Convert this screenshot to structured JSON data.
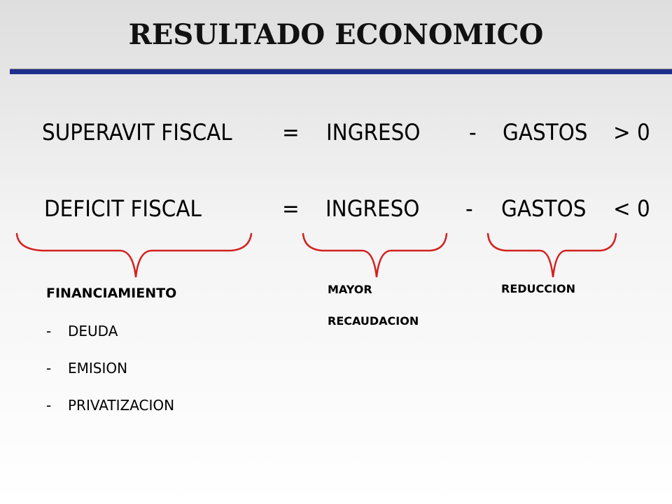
{
  "title": "RESULTADO ECONOMICO",
  "colors": {
    "rule": "#1f2f8c",
    "brace": "#d42020"
  },
  "equations": [
    {
      "lhs": "SUPERAVIT FISCAL",
      "eq": "=",
      "term1": "INGRESO",
      "op": "-",
      "term2": "GASTOS",
      "cmp": "> 0"
    },
    {
      "lhs": "DEFICIT FISCAL",
      "eq": "=",
      "term1": "INGRESO",
      "op": "-",
      "term2": "GASTOS",
      "cmp": "< 0"
    }
  ],
  "financiamiento": {
    "heading": "FINANCIAMIENTO",
    "items": [
      {
        "dash": "-",
        "text": "DEUDA"
      },
      {
        "dash": "-",
        "text": "EMISION"
      },
      {
        "dash": "-",
        "text": "PRIVATIZACION"
      }
    ]
  },
  "ingreso_note": {
    "line1": "MAYOR",
    "line2": "RECAUDACION"
  },
  "gastos_note": "REDUCCION"
}
